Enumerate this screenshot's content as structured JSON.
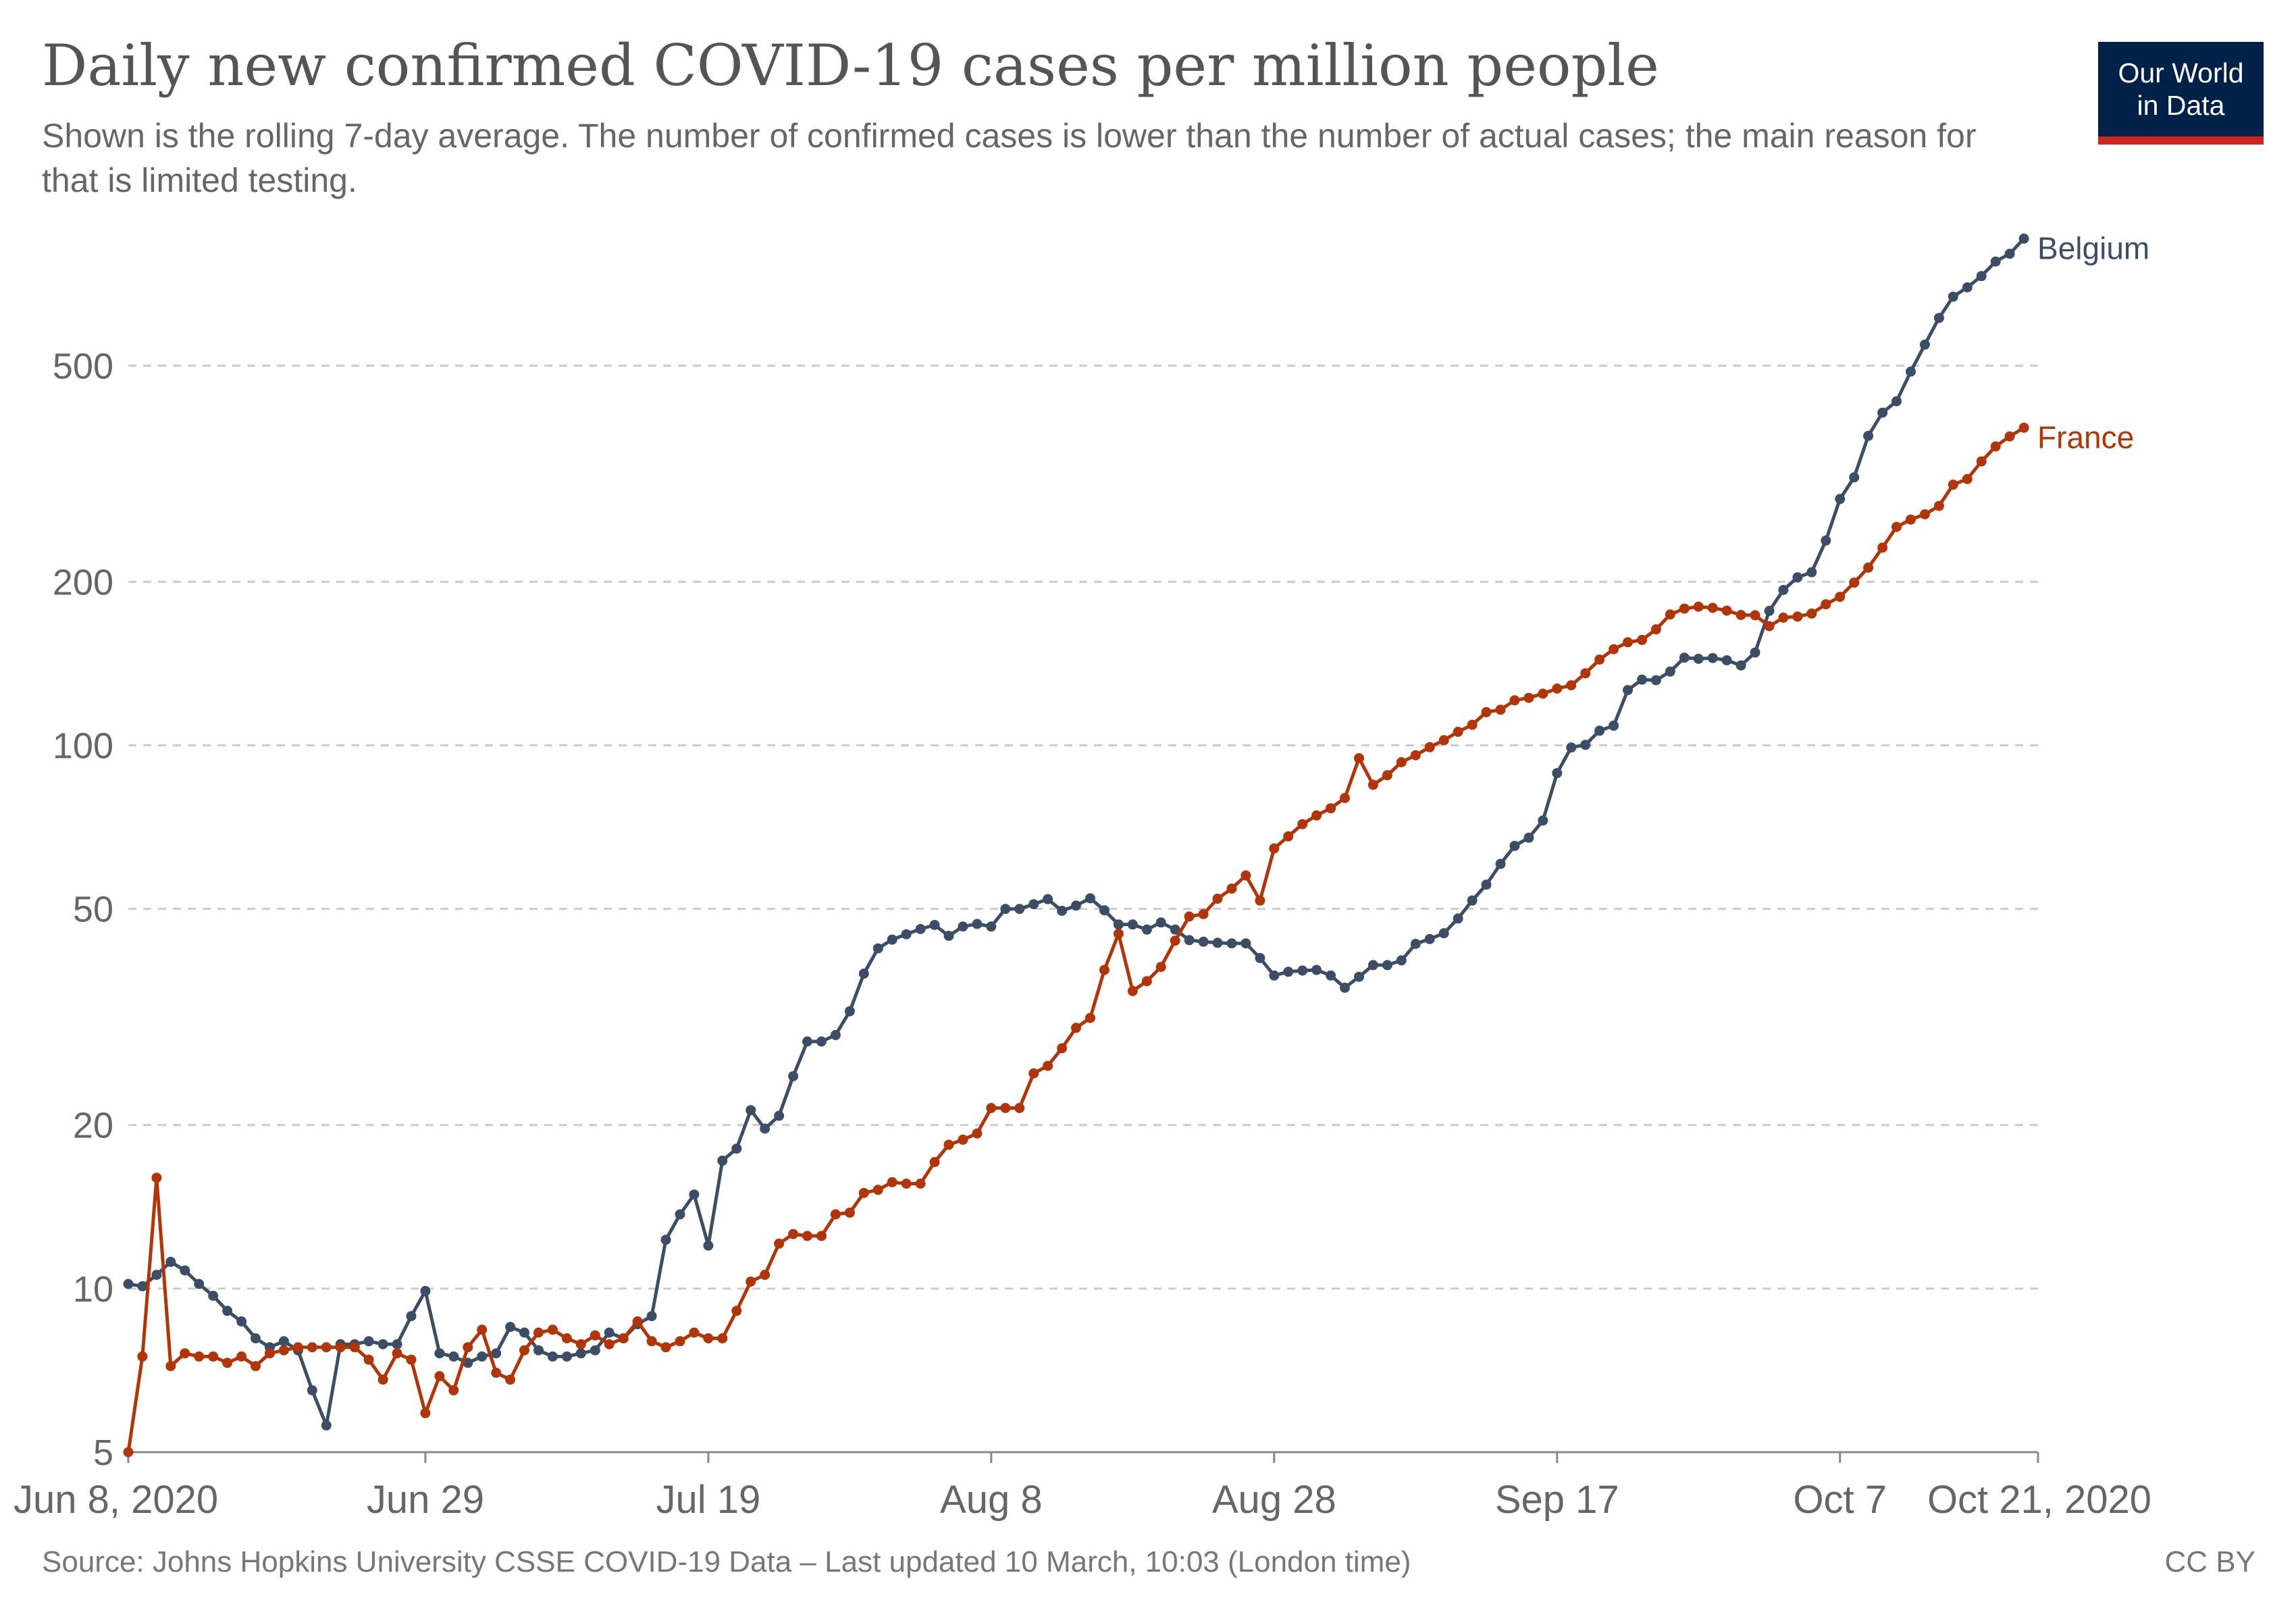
{
  "header": {
    "title": "Daily new confirmed COVID-19 cases per million people",
    "subtitle": "Shown is the rolling 7-day average. The number of confirmed cases is lower than the number of actual cases; the main reason for that is limited testing."
  },
  "logo": {
    "line1": "Our World",
    "line2": "in Data"
  },
  "footer": {
    "source": "Source: Johns Hopkins University CSSE COVID-19 Data – Last updated 10 March, 10:03 (London time)",
    "license": "CC BY"
  },
  "colors": {
    "belgium": "#3c4e66",
    "france": "#b13507",
    "grid": "#cccccc",
    "axis": "#888888"
  },
  "chart_data": {
    "type": "line",
    "title": "Daily new confirmed COVID-19 cases per million people",
    "y_scale": "log",
    "ylim": [
      5,
      900
    ],
    "yticks": [
      5,
      10,
      20,
      50,
      100,
      200,
      500
    ],
    "ytick_labels": [
      "5",
      "10",
      "20",
      "50",
      "100",
      "200",
      "500"
    ],
    "x_start": "2020-06-08",
    "x_end": "2020-10-21",
    "xticks": [
      "2020-06-08",
      "2020-06-29",
      "2020-07-19",
      "2020-08-08",
      "2020-08-28",
      "2020-09-17",
      "2020-10-07",
      "2020-10-21"
    ],
    "xtick_labels": [
      "Jun 8, 2020",
      "Jun 29",
      "Jul 19",
      "Aug 8",
      "Aug 28",
      "Sep 17",
      "Oct 7",
      "Oct 21, 2020"
    ],
    "grid": "horizontal dashed",
    "series": [
      {
        "name": "Belgium",
        "color": "#3c4e66",
        "start_date": "2020-06-08",
        "values": [
          10.2,
          10.1,
          10.6,
          11.2,
          10.8,
          10.2,
          9.7,
          9.1,
          8.7,
          8.1,
          7.8,
          8.0,
          7.7,
          6.5,
          5.6,
          7.9,
          7.9,
          8.0,
          7.9,
          7.9,
          8.9,
          9.9,
          7.6,
          7.5,
          7.3,
          7.5,
          7.6,
          8.5,
          8.3,
          7.7,
          7.5,
          7.5,
          7.6,
          7.7,
          8.3,
          8.1,
          8.6,
          8.9,
          12.3,
          13.7,
          14.9,
          12.0,
          17.2,
          18.1,
          21.3,
          19.7,
          20.8,
          24.6,
          28.5,
          28.5,
          29.3,
          32.4,
          38.0,
          42.3,
          43.9,
          44.9,
          45.9,
          46.7,
          44.6,
          46.4,
          46.9,
          46.4,
          50.0,
          50.0,
          51.0,
          52.1,
          49.6,
          50.7,
          52.3,
          49.7,
          46.8,
          46.8,
          45.8,
          47.2,
          45.8,
          43.8,
          43.5,
          43.3,
          43.2,
          43.2,
          40.6,
          37.7,
          38.3,
          38.5,
          38.6,
          37.7,
          35.8,
          37.5,
          39.4,
          39.4,
          40.2,
          43.1,
          44.0,
          45.1,
          48.0,
          51.8,
          55.4,
          60.5,
          65.3,
          67.6,
          72.7,
          88.9,
          99.1,
          100.2,
          106.4,
          108.7,
          126.4,
          132.1,
          131.8,
          136.7,
          145.0,
          144.3,
          144.8,
          143.4,
          140.3,
          148.2,
          176.8,
          193.2,
          203.8,
          208.3,
          238.2,
          284.1,
          311.4,
          371.2,
          409.6,
          429.9,
          487.5,
          546.6,
          612.0,
          669.7,
          696.6,
          730.6,
          777.3,
          803.3,
          856.5
        ]
      },
      {
        "name": "France",
        "color": "#b13507",
        "start_date": "2020-06-08",
        "values": [
          5.0,
          7.5,
          16.0,
          7.2,
          7.6,
          7.5,
          7.5,
          7.3,
          7.5,
          7.2,
          7.6,
          7.7,
          7.8,
          7.8,
          7.8,
          7.8,
          7.8,
          7.4,
          6.8,
          7.6,
          7.4,
          5.9,
          6.9,
          6.5,
          7.8,
          8.4,
          7.0,
          6.8,
          7.7,
          8.3,
          8.4,
          8.1,
          7.9,
          8.2,
          7.9,
          8.1,
          8.7,
          8.0,
          7.8,
          8.0,
          8.3,
          8.1,
          8.1,
          9.1,
          10.3,
          10.6,
          12.1,
          12.6,
          12.5,
          12.5,
          13.7,
          13.8,
          15.0,
          15.2,
          15.7,
          15.6,
          15.6,
          17.1,
          18.4,
          18.8,
          19.3,
          21.5,
          21.5,
          21.5,
          24.9,
          25.7,
          27.7,
          30.2,
          31.5,
          38.6,
          45.0,
          35.3,
          36.8,
          39.1,
          43.7,
          48.4,
          48.9,
          52.2,
          54.5,
          57.6,
          51.8,
          64.6,
          68.0,
          71.6,
          74.3,
          76.6,
          80.0,
          94.7,
          84.6,
          88.1,
          93.1,
          95.9,
          99.2,
          102.2,
          105.9,
          109.1,
          115.1,
          116.3,
          121.0,
          122.3,
          124.5,
          127.2,
          129.0,
          135.7,
          143.8,
          150.3,
          154.8,
          156.3,
          163.5,
          174.1,
          178.5,
          180.0,
          179.1,
          177.0,
          173.8,
          173.6,
          165.7,
          171.8,
          172.6,
          174.8,
          181.8,
          187.7,
          199.3,
          212.4,
          231.1,
          252.4,
          260.4,
          266.2,
          275.8,
          301.9,
          309.2,
          333.2,
          355.0,
          370.4,
          384.3
        ]
      }
    ],
    "series_labels": [
      "Belgium",
      "France"
    ]
  }
}
